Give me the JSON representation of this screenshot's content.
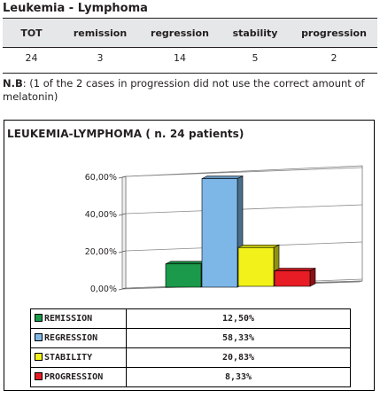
{
  "header": {
    "title": "Leukemia - Lymphoma"
  },
  "summary_table": {
    "columns": [
      "TOT",
      "remission",
      "regression",
      "stability",
      "progression"
    ],
    "values": [
      "24",
      "3",
      "14",
      "5",
      "2"
    ]
  },
  "note": {
    "label": "N.B",
    "text": ": (1 of the 2 cases in progression did not use the correct amount of melatonin)"
  },
  "chart_data": {
    "type": "bar",
    "title": "LEUKEMIA-LYMPHOMA ( n. 24 patients)",
    "categories": [
      "REMISSION",
      "REGRESSION",
      "STABILITY",
      "PROGRESSION"
    ],
    "values": [
      12.5,
      58.33,
      20.83,
      8.33
    ],
    "value_labels": [
      "12,50%",
      "58,33%",
      "20,83%",
      "8,33%"
    ],
    "colors": [
      "#1a9a4a",
      "#7db7e8",
      "#f2f21a",
      "#e81c24"
    ],
    "ylim": [
      0,
      60
    ],
    "yticks": [
      "0,00%",
      "20,00%",
      "40,00%",
      "60,00%"
    ],
    "grid": true,
    "legend": "table-below"
  }
}
